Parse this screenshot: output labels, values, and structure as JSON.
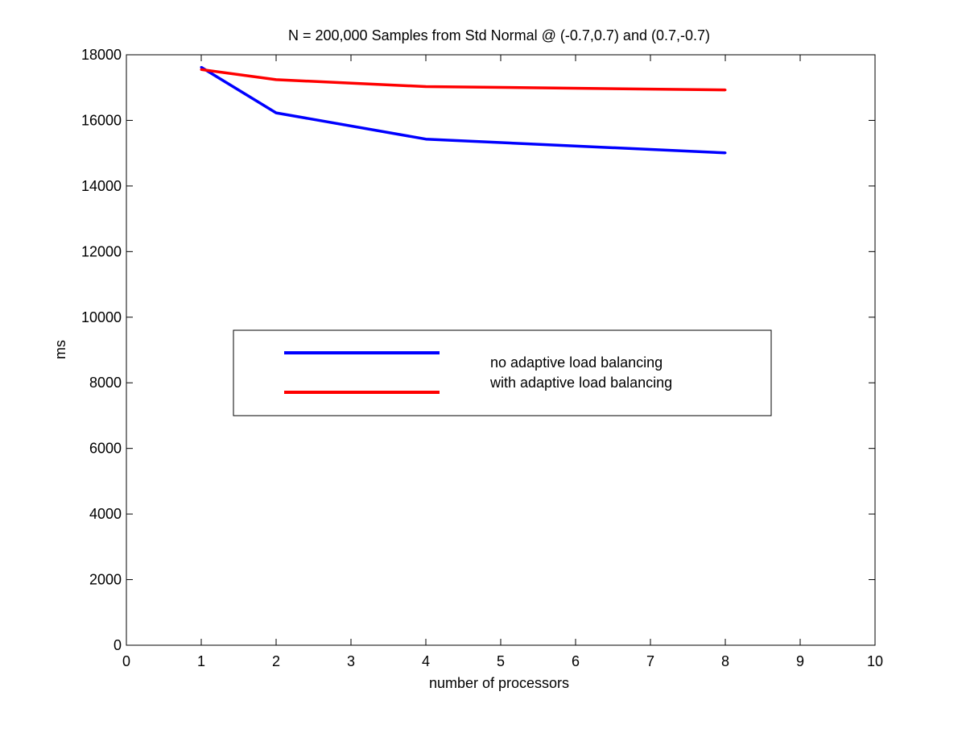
{
  "chart_data": {
    "type": "line",
    "title": "N = 200,000 Samples from Std Normal @ (-0.7,0.7) and (0.7,-0.7)",
    "xlabel": "number of processors",
    "ylabel": "ms",
    "xlim": [
      0,
      10
    ],
    "ylim": [
      0,
      18000
    ],
    "x_ticks": [
      0,
      1,
      2,
      3,
      4,
      5,
      6,
      7,
      8,
      9,
      10
    ],
    "y_ticks": [
      0,
      2000,
      4000,
      6000,
      8000,
      10000,
      12000,
      14000,
      16000,
      18000
    ],
    "grid": false,
    "legend_position": "center",
    "series": [
      {
        "name": "no adaptive load balancing",
        "color": "#0000ff",
        "x": [
          1,
          2,
          4,
          8
        ],
        "y": [
          17620,
          16230,
          15430,
          15010
        ]
      },
      {
        "name": "with adaptive load balancing",
        "color": "#ff0000",
        "x": [
          1,
          2,
          4,
          8
        ],
        "y": [
          17550,
          17240,
          17030,
          16930
        ]
      }
    ]
  }
}
